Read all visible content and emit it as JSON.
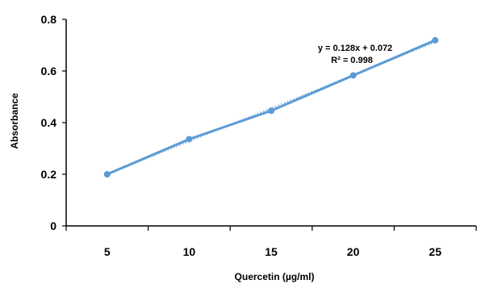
{
  "chart_data": {
    "type": "line",
    "x": [
      5,
      10,
      15,
      20,
      25
    ],
    "series": [
      {
        "values": [
          0.2,
          0.336,
          0.446,
          0.583,
          0.719
        ]
      }
    ],
    "xlabel": "Quercetin (µg/ml)",
    "ylabel": "Absorbance",
    "ylim": [
      0,
      0.8
    ],
    "yticks": [
      0,
      0.2,
      0.4,
      0.6,
      0.8
    ],
    "ytick_labels": [
      "0",
      "0.2",
      "0.4",
      "0.6",
      "0.8"
    ],
    "xticks": [
      5,
      10,
      15,
      20,
      25
    ],
    "xtick_labels": [
      "5",
      "10",
      "15",
      "20",
      "25"
    ],
    "trendline": {
      "type": "linear",
      "slope": 0.128,
      "intercept": 0.072,
      "style": "dotted"
    },
    "annotations": {
      "equation": "y = 0.128x + 0.072",
      "r_squared": "R² = 0.998"
    },
    "grid": false,
    "colors": {
      "series": "#5b9bd5",
      "axes": "#000000"
    }
  }
}
